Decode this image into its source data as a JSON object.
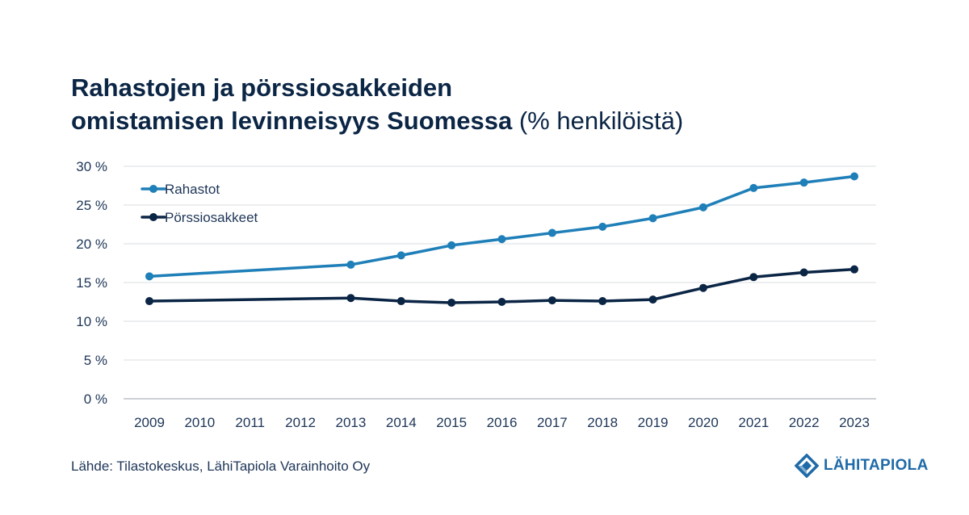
{
  "title": {
    "line1": "Rahastojen ja pörssiosakkeiden",
    "line2_bold": "omistamisen levinneisyys Suomessa",
    "line2_unit": "(% henkilöistä)"
  },
  "chart_data": {
    "type": "line",
    "title": "Rahastojen ja pörssiosakkeiden omistamisen levinneisyys Suomessa (% henkilöistä)",
    "xlabel": "",
    "ylabel": "",
    "x": [
      2009,
      2010,
      2011,
      2012,
      2013,
      2014,
      2015,
      2016,
      2017,
      2018,
      2019,
      2020,
      2021,
      2022,
      2023
    ],
    "x_tick_labels": [
      "2009",
      "2010",
      "2011",
      "2012",
      "2013",
      "2014",
      "2015",
      "2016",
      "2017",
      "2018",
      "2019",
      "2020",
      "2021",
      "2022",
      "2023"
    ],
    "ylim": [
      0,
      30
    ],
    "y_ticks": [
      0,
      5,
      10,
      15,
      20,
      25,
      30
    ],
    "y_tick_labels": [
      "0 %",
      "5 %",
      "10 %",
      "15 %",
      "20 %",
      "25 %",
      "30 %"
    ],
    "grid": true,
    "legend_position": "top-left",
    "series": [
      {
        "name": "Rahastot",
        "color": "#1f7fb8",
        "points": [
          [
            2009,
            15.8
          ],
          [
            2013,
            17.3
          ],
          [
            2014,
            18.5
          ],
          [
            2015,
            19.8
          ],
          [
            2016,
            20.6
          ],
          [
            2017,
            21.4
          ],
          [
            2018,
            22.2
          ],
          [
            2019,
            23.3
          ],
          [
            2020,
            24.7
          ],
          [
            2021,
            27.2
          ],
          [
            2022,
            27.9
          ],
          [
            2023,
            28.7
          ]
        ]
      },
      {
        "name": "Pörssiosakkeet",
        "color": "#0b2545",
        "points": [
          [
            2009,
            12.6
          ],
          [
            2013,
            13.0
          ],
          [
            2014,
            12.6
          ],
          [
            2015,
            12.4
          ],
          [
            2016,
            12.5
          ],
          [
            2017,
            12.7
          ],
          [
            2018,
            12.6
          ],
          [
            2019,
            12.8
          ],
          [
            2020,
            14.3
          ],
          [
            2021,
            15.7
          ],
          [
            2022,
            16.3
          ],
          [
            2023,
            16.7
          ]
        ]
      }
    ]
  },
  "source": "Lähde: Tilastokeskus, LähiTapiola Varainhoito Oy",
  "logo": {
    "text": "LÄHITAPIOLA",
    "color": "#1f6aa8"
  }
}
